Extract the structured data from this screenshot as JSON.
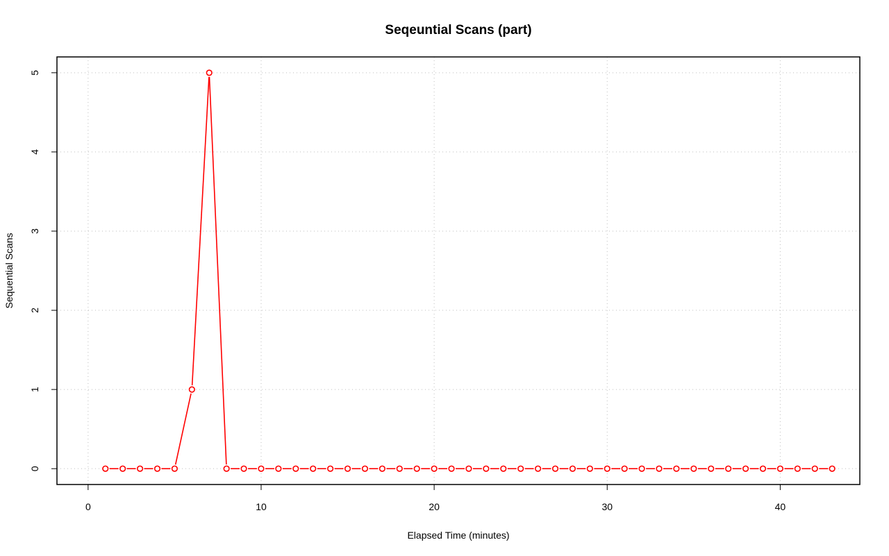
{
  "chart_data": {
    "type": "line",
    "title": "Seqeuntial Scans (part)",
    "xlabel": "Elapsed Time (minutes)",
    "ylabel": "Sequential Scans",
    "xlim": [
      -1.8,
      44.6
    ],
    "ylim": [
      -0.2,
      5.2
    ],
    "xticks": [
      0,
      10,
      20,
      30,
      40
    ],
    "yticks": [
      0,
      1,
      2,
      3,
      4,
      5
    ],
    "grid": true,
    "series": [
      {
        "color": "#ff0000",
        "x": [
          1,
          2,
          3,
          4,
          5,
          6,
          7,
          8,
          9,
          10,
          11,
          12,
          13,
          14,
          15,
          16,
          17,
          18,
          19,
          20,
          21,
          22,
          23,
          24,
          25,
          26,
          27,
          28,
          29,
          30,
          31,
          32,
          33,
          34,
          35,
          36,
          37,
          38,
          39,
          40,
          41,
          42,
          43
        ],
        "values": [
          0,
          0,
          0,
          0,
          0,
          1,
          5,
          0,
          0,
          0,
          0,
          0,
          0,
          0,
          0,
          0,
          0,
          0,
          0,
          0,
          0,
          0,
          0,
          0,
          0,
          0,
          0,
          0,
          0,
          0,
          0,
          0,
          0,
          0,
          0,
          0,
          0,
          0,
          0,
          0,
          0,
          0,
          0
        ]
      }
    ]
  }
}
